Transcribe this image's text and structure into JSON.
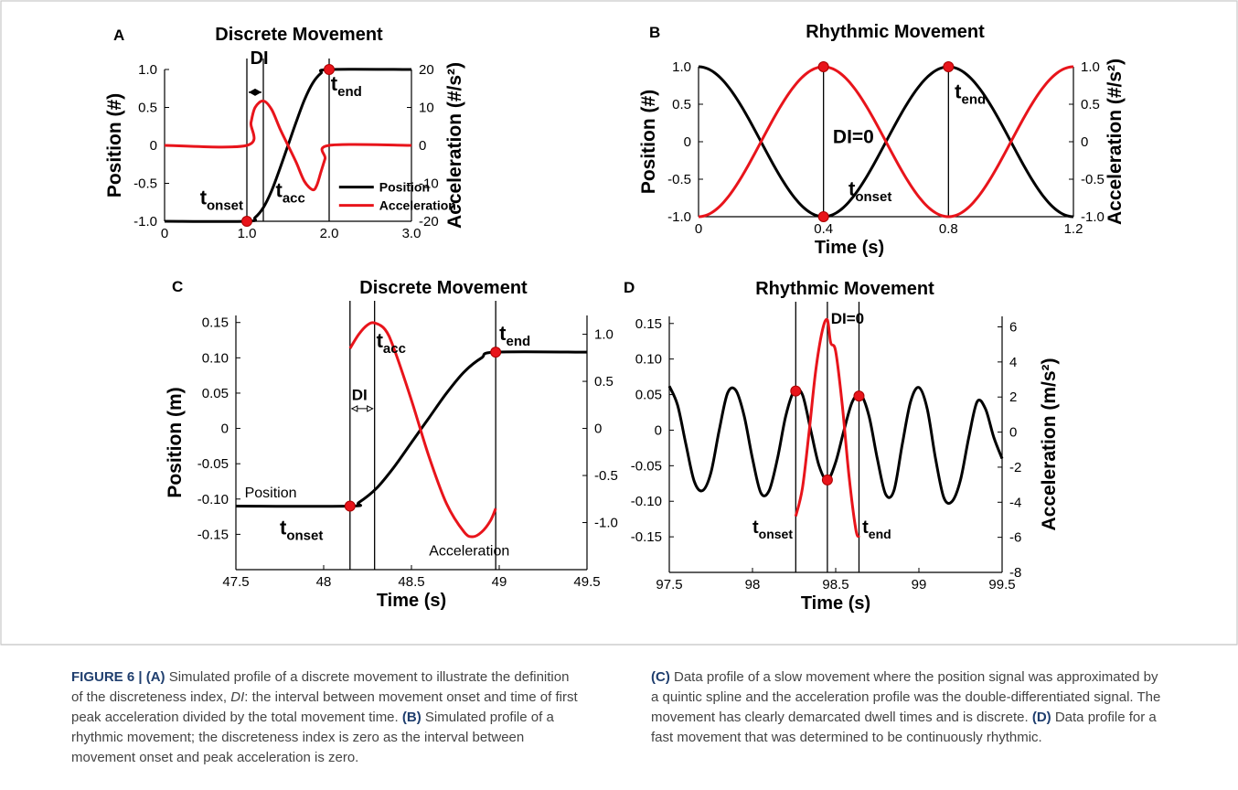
{
  "caption": {
    "figure_label": "FIGURE 6 |",
    "tag_a": "(A)",
    "text_a1": " Simulated profile of a discrete movement to illustrate the definition of the discreteness index, ",
    "di_italic": "DI",
    "text_a2": ": the interval between movement onset and time of first peak acceleration divided by the total movement time. ",
    "tag_b": "(B)",
    "text_b": " Simulated profile of a rhythmic movement; the discreteness index is zero as the interval between movement onset and peak acceleration is zero.",
    "tag_c": "(C)",
    "text_c": " Data profile of a slow movement where the position signal was approximated by a quintic spline and the acceleration profile was the double-differentiated signal. The movement has clearly demarcated dwell times and is discrete. ",
    "tag_d": "(D)",
    "text_d": " Data profile for a fast movement that was determined to be continuously rhythmic."
  },
  "colors": {
    "position": "#000000",
    "acceleration": "#e8141b",
    "marker": "#e8141b"
  },
  "chart_data": [
    {
      "id": "A",
      "type": "line",
      "panel_label": "A",
      "title": "Discrete Movement",
      "ylabel": "Position (#)",
      "y2label": "Acceleration (#/s²)",
      "xlabel": "",
      "xlim": [
        0,
        3
      ],
      "ylim": [
        -1,
        1
      ],
      "y2lim": [
        -20,
        20
      ],
      "xticks": [
        "0",
        "1.0",
        "2.0",
        "3.0"
      ],
      "yticks": [
        "-1.0",
        "-0.5",
        "0",
        "0.5",
        "1.0"
      ],
      "y2ticks": [
        "-20",
        "-10",
        "0",
        "10",
        "20"
      ],
      "vlines": [
        1.0,
        1.2,
        2.0
      ],
      "series": [
        {
          "name": "Position",
          "axis": "left",
          "color": "#000000",
          "x": [
            0,
            1.0,
            1.1,
            1.2,
            1.3,
            1.4,
            1.5,
            1.6,
            1.7,
            1.8,
            1.9,
            2.0,
            3.0
          ],
          "y": [
            -1,
            -1,
            -0.95,
            -0.82,
            -0.6,
            -0.31,
            0,
            0.31,
            0.6,
            0.82,
            0.95,
            1.0,
            1.0
          ]
        },
        {
          "name": "Acceleration",
          "axis": "right",
          "color": "#e8141b",
          "x": [
            0,
            1.0,
            1.05,
            1.1,
            1.2,
            1.3,
            1.4,
            1.5,
            1.6,
            1.7,
            1.8,
            1.85,
            1.9,
            1.95,
            2.0,
            3.0
          ],
          "y": [
            0,
            0,
            6,
            10,
            11.7,
            9.5,
            4.5,
            0,
            -4.5,
            -9.5,
            -11.7,
            -10.5,
            -7,
            -3.5,
            0,
            0
          ]
        }
      ],
      "markers": [
        {
          "x": 1.0,
          "y": -1.0
        },
        {
          "x": 2.0,
          "y": 1.0
        }
      ],
      "labels": {
        "t_onset": "onset",
        "t_acc": "acc",
        "t_end": "end",
        "di": "DI"
      },
      "legend": [
        "Position",
        "Acceleration"
      ]
    },
    {
      "id": "B",
      "type": "line",
      "panel_label": "B",
      "title": "Rhythmic Movement",
      "ylabel": "Position (#)",
      "y2label": "Acceleration (#/s²)",
      "xlabel": "Time (s)",
      "xlim": [
        0,
        1.2
      ],
      "ylim": [
        -1,
        1
      ],
      "y2lim": [
        -1,
        1
      ],
      "xticks": [
        "0",
        "0.4",
        "0.8",
        "1.2"
      ],
      "yticks": [
        "-1.0",
        "-0.5",
        "0",
        "0.5",
        "1.0"
      ],
      "y2ticks": [
        "-1.0",
        "-0.5",
        "0",
        "0.5",
        "1.0"
      ],
      "vlines": [
        0.4,
        0.8
      ],
      "series": [
        {
          "name": "Position",
          "axis": "left",
          "color": "#000000",
          "formula": "cos",
          "period": 0.8,
          "phase": 0
        },
        {
          "name": "Acceleration",
          "axis": "right",
          "color": "#e8141b",
          "formula": "negcos",
          "period": 0.8,
          "phase": 0
        }
      ],
      "markers": [
        {
          "x": 0.4,
          "y": 1.0
        },
        {
          "x": 0.4,
          "y": -1.0
        },
        {
          "x": 0.8,
          "y": 1.0
        }
      ],
      "labels": {
        "di": "DI=0",
        "t_onset": "onset",
        "t_end": "end"
      }
    },
    {
      "id": "C",
      "type": "line",
      "panel_label": "C",
      "title": "Discrete Movement",
      "ylabel": "Position (m)",
      "y2label": "",
      "xlabel": "Time (s)",
      "xlim": [
        47.5,
        49.5
      ],
      "ylim": [
        -0.2,
        0.16
      ],
      "y2lim": [
        -1.5,
        1.2
      ],
      "xticks": [
        "47.5",
        "48",
        "48.5",
        "49",
        "49.5"
      ],
      "yticks": [
        "-0.15",
        "-0.10",
        "-0.05",
        "0",
        "0.05",
        "0.10",
        "0.15"
      ],
      "y2ticks": [
        "-1.0",
        "-0.5",
        "0",
        "0.5",
        "1.0"
      ],
      "vlines": [
        48.15,
        48.29,
        48.98
      ],
      "series": [
        {
          "name": "Position",
          "axis": "left",
          "color": "#000000",
          "x": [
            47.5,
            48.15,
            48.2,
            48.3,
            48.4,
            48.5,
            48.6,
            48.7,
            48.8,
            48.9,
            48.98,
            49.5
          ],
          "y": [
            -0.11,
            -0.11,
            -0.105,
            -0.085,
            -0.055,
            -0.02,
            0.015,
            0.05,
            0.08,
            0.1,
            0.108,
            0.108
          ]
        },
        {
          "name": "Acceleration",
          "axis": "right",
          "color": "#e8141b",
          "x": [
            48.15,
            48.2,
            48.25,
            48.29,
            48.35,
            48.4,
            48.5,
            48.6,
            48.7,
            48.8,
            48.85,
            48.9,
            48.95,
            48.98
          ],
          "y": [
            0.85,
            1.0,
            1.1,
            1.12,
            1.05,
            0.85,
            0.3,
            -0.3,
            -0.8,
            -1.1,
            -1.15,
            -1.1,
            -0.98,
            -0.85
          ]
        }
      ],
      "markers": [
        {
          "x": 48.15,
          "y": -0.11
        },
        {
          "x": 48.98,
          "y": 0.108
        }
      ],
      "labels": {
        "t_acc": "acc",
        "t_end": "end",
        "t_onset": "onset",
        "di": "DI",
        "position": "Position",
        "acceleration": "Acceleration"
      }
    },
    {
      "id": "D",
      "type": "line",
      "panel_label": "D",
      "title": "Rhythmic Movement",
      "ylabel": "",
      "y2label": "Acceleration (m/s²)",
      "xlabel": "Time (s)",
      "xlim": [
        97.5,
        99.5
      ],
      "ylim": [
        -0.2,
        0.16
      ],
      "y2lim": [
        -8,
        6.6
      ],
      "xticks": [
        "97.5",
        "98",
        "98.5",
        "99",
        "99.5"
      ],
      "yticks": [
        "-0.15",
        "-0.10",
        "-0.05",
        "0",
        "0.05",
        "0.10",
        "0.15"
      ],
      "y2ticks": [
        "-8",
        "-6",
        "-4",
        "-2",
        "0",
        "2",
        "4",
        "6"
      ],
      "vlines": [
        98.26,
        98.45,
        98.64
      ],
      "series": [
        {
          "name": "Position",
          "axis": "left",
          "color": "#000000",
          "x": [
            97.5,
            97.55,
            97.6,
            97.65,
            97.7,
            97.75,
            97.8,
            97.85,
            97.9,
            97.95,
            98.0,
            98.05,
            98.1,
            98.15,
            98.2,
            98.25,
            98.3,
            98.35,
            98.4,
            98.45,
            98.5,
            98.55,
            98.6,
            98.65,
            98.7,
            98.75,
            98.8,
            98.85,
            98.9,
            98.95,
            99.0,
            99.05,
            99.1,
            99.15,
            99.2,
            99.25,
            99.3,
            99.35,
            99.4,
            99.45,
            99.5
          ],
          "y": [
            0.062,
            0.035,
            -0.02,
            -0.072,
            -0.085,
            -0.06,
            0.0,
            0.052,
            0.056,
            0.02,
            -0.04,
            -0.088,
            -0.085,
            -0.04,
            0.02,
            0.055,
            0.05,
            0.0,
            -0.05,
            -0.07,
            -0.045,
            0.0,
            0.04,
            0.05,
            0.02,
            -0.04,
            -0.09,
            -0.085,
            -0.02,
            0.04,
            0.06,
            0.03,
            -0.04,
            -0.095,
            -0.1,
            -0.07,
            -0.01,
            0.04,
            0.03,
            -0.01,
            -0.04
          ]
        },
        {
          "name": "Acceleration",
          "axis": "right",
          "color": "#e8141b",
          "x": [
            98.26,
            98.3,
            98.34,
            98.38,
            98.42,
            98.45,
            98.47,
            98.5,
            98.54,
            98.58,
            98.62,
            98.64
          ],
          "y": [
            -4.8,
            -3.2,
            0.0,
            3.5,
            5.8,
            6.4,
            5.1,
            4.6,
            1.5,
            -2.5,
            -5.5,
            -6.0
          ]
        }
      ],
      "markers": [
        {
          "x": 98.26,
          "y": 0.055
        },
        {
          "x": 98.45,
          "y": -0.07
        },
        {
          "x": 98.64,
          "y": 0.048
        }
      ],
      "labels": {
        "di": "DI=0",
        "t_onset": "onset",
        "t_end": "end"
      }
    }
  ]
}
